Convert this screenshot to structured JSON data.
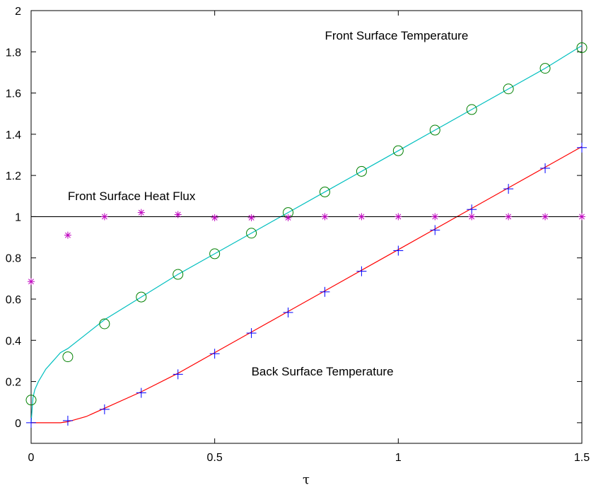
{
  "chart_data": {
    "type": "line",
    "xlabel": "τ",
    "ylabel": "",
    "xlim": [
      0,
      1.5
    ],
    "ylim": [
      -0.1,
      2
    ],
    "grid": false,
    "x_ticks": [
      0,
      0.5,
      1,
      1.5
    ],
    "x_tick_labels": [
      "0",
      "0.5",
      "1",
      "1.5"
    ],
    "y_ticks": [
      0,
      0.2,
      0.4,
      0.6,
      0.8,
      1,
      1.2,
      1.4,
      1.6,
      1.8,
      2
    ],
    "y_tick_labels": [
      "0",
      "0.2",
      "0.4",
      "0.6",
      "0.8",
      "1",
      "1.2",
      "1.4",
      "1.6",
      "1.8",
      "2"
    ],
    "annotations": [
      {
        "text": "Front Surface Temperature",
        "x": 0.8,
        "y": 1.86
      },
      {
        "text": "Front Surface Heat Flux",
        "x": 0.1,
        "y": 1.08
      },
      {
        "text": "Back Surface Temperature",
        "x": 0.6,
        "y": 0.23
      }
    ],
    "series": [
      {
        "role": "line",
        "color": "#00bfbf",
        "x": [
          0,
          0.005,
          0.01,
          0.02,
          0.04,
          0.06,
          0.08,
          0.1,
          0.15,
          0.2,
          0.3,
          0.4,
          0.5,
          0.6,
          0.7,
          0.8,
          0.9,
          1.0,
          1.1,
          1.2,
          1.3,
          1.4,
          1.5
        ],
        "y": [
          0,
          0.12,
          0.16,
          0.2,
          0.26,
          0.3,
          0.34,
          0.36,
          0.43,
          0.5,
          0.61,
          0.72,
          0.82,
          0.92,
          1.02,
          1.12,
          1.22,
          1.32,
          1.42,
          1.52,
          1.62,
          1.72,
          1.83
        ]
      },
      {
        "role": "line",
        "color": "#ff0000",
        "x": [
          0,
          0.05,
          0.08,
          0.1,
          0.15,
          0.2,
          0.3,
          0.4,
          0.5,
          0.6,
          0.7,
          0.8,
          0.9,
          1.0,
          1.1,
          1.2,
          1.3,
          1.4,
          1.5
        ],
        "y": [
          0,
          0,
          0,
          0.005,
          0.03,
          0.07,
          0.15,
          0.24,
          0.34,
          0.44,
          0.54,
          0.64,
          0.74,
          0.84,
          0.94,
          1.04,
          1.14,
          1.24,
          1.34
        ]
      },
      {
        "role": "line",
        "color": "#000000",
        "x": [
          0,
          1.5
        ],
        "y": [
          1,
          1
        ]
      },
      {
        "role": "marker",
        "marker": "circle",
        "color": "#008000",
        "x": [
          0,
          0.1,
          0.2,
          0.3,
          0.4,
          0.5,
          0.6,
          0.7,
          0.8,
          0.9,
          1.0,
          1.1,
          1.2,
          1.3,
          1.4,
          1.5
        ],
        "y": [
          0.11,
          0.32,
          0.48,
          0.61,
          0.72,
          0.82,
          0.92,
          1.02,
          1.12,
          1.22,
          1.32,
          1.42,
          1.52,
          1.62,
          1.72,
          1.82
        ]
      },
      {
        "role": "marker",
        "marker": "plus",
        "color": "#0000ff",
        "x": [
          0,
          0.1,
          0.2,
          0.3,
          0.4,
          0.5,
          0.6,
          0.7,
          0.8,
          0.9,
          1.0,
          1.1,
          1.2,
          1.3,
          1.4,
          1.5
        ],
        "y": [
          0,
          0.01,
          0.065,
          0.145,
          0.235,
          0.335,
          0.435,
          0.535,
          0.635,
          0.735,
          0.835,
          0.935,
          1.035,
          1.135,
          1.235,
          1.335
        ]
      },
      {
        "role": "marker",
        "marker": "asterisk",
        "color": "#bf00bf",
        "x": [
          0,
          0.1,
          0.2,
          0.3,
          0.4,
          0.5,
          0.6,
          0.7,
          0.8,
          0.9,
          1.0,
          1.1,
          1.2,
          1.3,
          1.4,
          1.5
        ],
        "y": [
          0.685,
          0.91,
          1.0,
          1.02,
          1.01,
          0.995,
          0.995,
          0.995,
          1.0,
          1.0,
          1.0,
          1.0,
          1.0,
          1.0,
          1.0,
          1.0
        ]
      }
    ]
  }
}
